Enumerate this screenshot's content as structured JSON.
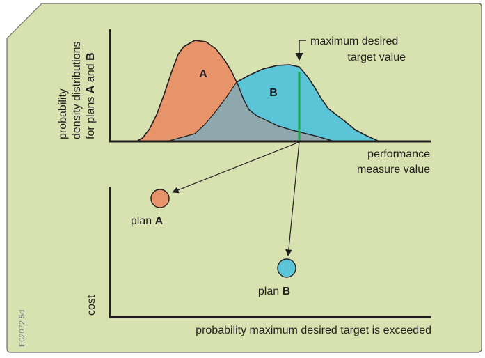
{
  "colors": {
    "background_panel": "#d8e2b0",
    "plan_a": "#e8946a",
    "plan_b": "#5bc4d6",
    "overlap": "#8fa8ad",
    "target_line": "#1aa54a",
    "ink": "#231f20"
  },
  "top_chart": {
    "y_label_line1": "probability",
    "y_label_line2": "density distributions",
    "y_label_line3_prefix": "for plans ",
    "y_label_line3_a": "A",
    "y_label_line3_and": " and ",
    "y_label_line3_b": "B",
    "x_label_line1": "performance",
    "x_label_line2": "measure value",
    "curve_a_label": "A",
    "curve_b_label": "B",
    "target_label_line1": "maximum desired",
    "target_label_line2": "target value"
  },
  "bottom_chart": {
    "y_label": "cost",
    "x_label": "probability maximum desired target is exceeded",
    "plan_a_prefix": "plan ",
    "plan_a_letter": "A",
    "plan_b_prefix": "plan ",
    "plan_b_letter": "B"
  },
  "figure_code": "E02072 5d"
}
